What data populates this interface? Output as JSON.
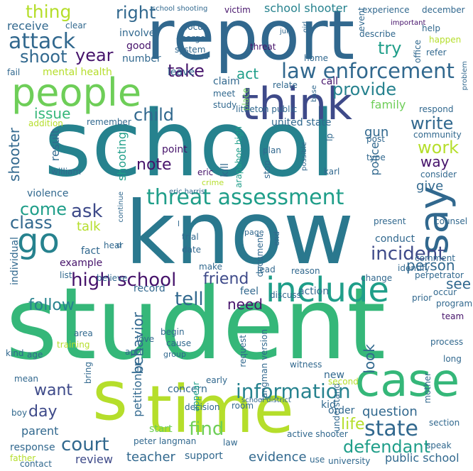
{
  "palette": {
    "dark_purple": "#46136b",
    "indigo": "#3e4a89",
    "blue": "#31688e",
    "teal": "#26828e",
    "green_teal": "#1f9e89",
    "green": "#35b779",
    "light_green": "#6ece58",
    "yellow_green": "#b5de2b",
    "yellow": "#e5e419"
  },
  "words": [
    {
      "text": "student"
    },
    {
      "text": "school"
    },
    {
      "text": "know"
    },
    {
      "text": "report"
    },
    {
      "text": "time"
    },
    {
      "text": "s"
    },
    {
      "text": "people"
    },
    {
      "text": "think"
    },
    {
      "text": "case"
    },
    {
      "text": "say"
    },
    {
      "text": "include"
    },
    {
      "text": "go"
    },
    {
      "text": "threat assessment"
    },
    {
      "text": "law enforcement"
    },
    {
      "text": "information"
    },
    {
      "text": "high school"
    },
    {
      "text": "incident"
    },
    {
      "text": "state"
    },
    {
      "text": "defendant"
    },
    {
      "text": "court"
    },
    {
      "text": "find"
    },
    {
      "text": "attack"
    },
    {
      "text": "right"
    },
    {
      "text": "thing"
    },
    {
      "text": "school shooter"
    },
    {
      "text": "try"
    },
    {
      "text": "shoot"
    },
    {
      "text": "year"
    },
    {
      "text": "take"
    },
    {
      "text": "act"
    },
    {
      "text": "provide"
    },
    {
      "text": "child"
    },
    {
      "text": "issue"
    },
    {
      "text": "write"
    },
    {
      "text": "work"
    },
    {
      "text": "way"
    },
    {
      "text": "note"
    },
    {
      "text": "come"
    },
    {
      "text": "ask"
    },
    {
      "text": "class"
    },
    {
      "text": "talk"
    },
    {
      "text": "friend"
    },
    {
      "text": "tell"
    },
    {
      "text": "need"
    },
    {
      "text": "person"
    },
    {
      "text": "see"
    },
    {
      "text": "follow"
    },
    {
      "text": "behavior"
    },
    {
      "text": "look"
    },
    {
      "text": "want"
    },
    {
      "text": "day"
    },
    {
      "text": "parent"
    },
    {
      "text": "review"
    },
    {
      "text": "teacher"
    },
    {
      "text": "evidence"
    },
    {
      "text": "public school"
    },
    {
      "text": "life"
    },
    {
      "text": "question"
    },
    {
      "text": "shooter"
    },
    {
      "text": "gun"
    },
    {
      "text": "police"
    },
    {
      "text": "family"
    },
    {
      "text": "give"
    },
    {
      "text": "result"
    },
    {
      "text": "shooting"
    },
    {
      "text": "violence"
    },
    {
      "text": "petitioner"
    },
    {
      "text": "individual"
    },
    {
      "text": "victim"
    },
    {
      "text": "event"
    },
    {
      "text": "receive"
    },
    {
      "text": "mental health"
    },
    {
      "text": "involve"
    },
    {
      "text": "good"
    },
    {
      "text": "number"
    },
    {
      "text": "leave"
    },
    {
      "text": "claim"
    },
    {
      "text": "call"
    },
    {
      "text": "united state"
    },
    {
      "text": "place"
    },
    {
      "text": "point"
    },
    {
      "text": "kill"
    },
    {
      "text": "eric"
    },
    {
      "text": "crime"
    },
    {
      "text": "conduct"
    },
    {
      "text": "fact"
    },
    {
      "text": "example"
    },
    {
      "text": "hear"
    },
    {
      "text": "believe"
    },
    {
      "text": "record"
    },
    {
      "text": "feel"
    },
    {
      "text": "action"
    },
    {
      "text": "discuss"
    },
    {
      "text": "new"
    },
    {
      "text": "kid"
    },
    {
      "text": "order"
    },
    {
      "text": "understand"
    },
    {
      "text": "concern"
    },
    {
      "text": "appear"
    },
    {
      "text": "response"
    },
    {
      "text": "peter langman"
    },
    {
      "text": "support"
    },
    {
      "text": "start"
    },
    {
      "text": "mother"
    },
    {
      "text": "present"
    },
    {
      "text": "comment"
    },
    {
      "text": "team"
    },
    {
      "text": "help"
    },
    {
      "text": "experience"
    },
    {
      "text": "december"
    },
    {
      "text": "important"
    },
    {
      "text": "happen"
    },
    {
      "text": "refer"
    },
    {
      "text": "office"
    },
    {
      "text": "describe"
    },
    {
      "text": "system"
    },
    {
      "text": "threat"
    },
    {
      "text": "home"
    },
    {
      "text": "charge"
    },
    {
      "text": "focus"
    },
    {
      "text": "jury"
    },
    {
      "text": "girl"
    },
    {
      "text": "school shooting"
    },
    {
      "text": "clear"
    },
    {
      "text": "relate"
    },
    {
      "text": "base"
    },
    {
      "text": "meet"
    },
    {
      "text": "study"
    },
    {
      "text": "post"
    },
    {
      "text": "community"
    },
    {
      "text": "consider"
    },
    {
      "text": "respond"
    },
    {
      "text": "problem"
    },
    {
      "text": "littleton public"
    },
    {
      "text": "arapahoe high"
    },
    {
      "text": "plan"
    },
    {
      "text": "stop"
    },
    {
      "text": "type"
    },
    {
      "text": "karl"
    },
    {
      "text": "lp"
    },
    {
      "text": "possible"
    },
    {
      "text": "remember"
    },
    {
      "text": "addition"
    },
    {
      "text": "william"
    },
    {
      "text": "eric harris"
    },
    {
      "text": "continue"
    },
    {
      "text": "page"
    },
    {
      "text": "trial"
    },
    {
      "text": "document"
    },
    {
      "text": "end"
    },
    {
      "text": "date"
    },
    {
      "text": "make"
    },
    {
      "text": "lead"
    },
    {
      "text": "reason"
    },
    {
      "text": "identify"
    },
    {
      "text": "perpetrator"
    },
    {
      "text": "occur"
    },
    {
      "text": "prior"
    },
    {
      "text": "program"
    },
    {
      "text": "change"
    },
    {
      "text": "list"
    },
    {
      "text": "area"
    },
    {
      "text": "training"
    },
    {
      "text": "love"
    },
    {
      "text": "april"
    },
    {
      "text": "begin"
    },
    {
      "text": "cause"
    },
    {
      "text": "group"
    },
    {
      "text": "request"
    },
    {
      "text": "langman version"
    },
    {
      "text": "witness"
    },
    {
      "text": "process"
    },
    {
      "text": "long"
    },
    {
      "text": "kind"
    },
    {
      "text": "age"
    },
    {
      "text": "mean"
    },
    {
      "text": "bring"
    },
    {
      "text": "decision"
    },
    {
      "text": "early"
    },
    {
      "text": "second"
    },
    {
      "text": "room"
    },
    {
      "text": "school district"
    },
    {
      "text": "active shooter"
    },
    {
      "text": "section"
    },
    {
      "text": "boy"
    },
    {
      "text": "father"
    },
    {
      "text": "law"
    },
    {
      "text": "use"
    },
    {
      "text": "university"
    },
    {
      "text": "speak"
    },
    {
      "text": "contact"
    },
    {
      "text": "fail"
    },
    {
      "text": "hold"
    },
    {
      "text": "counsel"
    },
    {
      "text": "d"
    },
    {
      "text": "l"
    }
  ]
}
